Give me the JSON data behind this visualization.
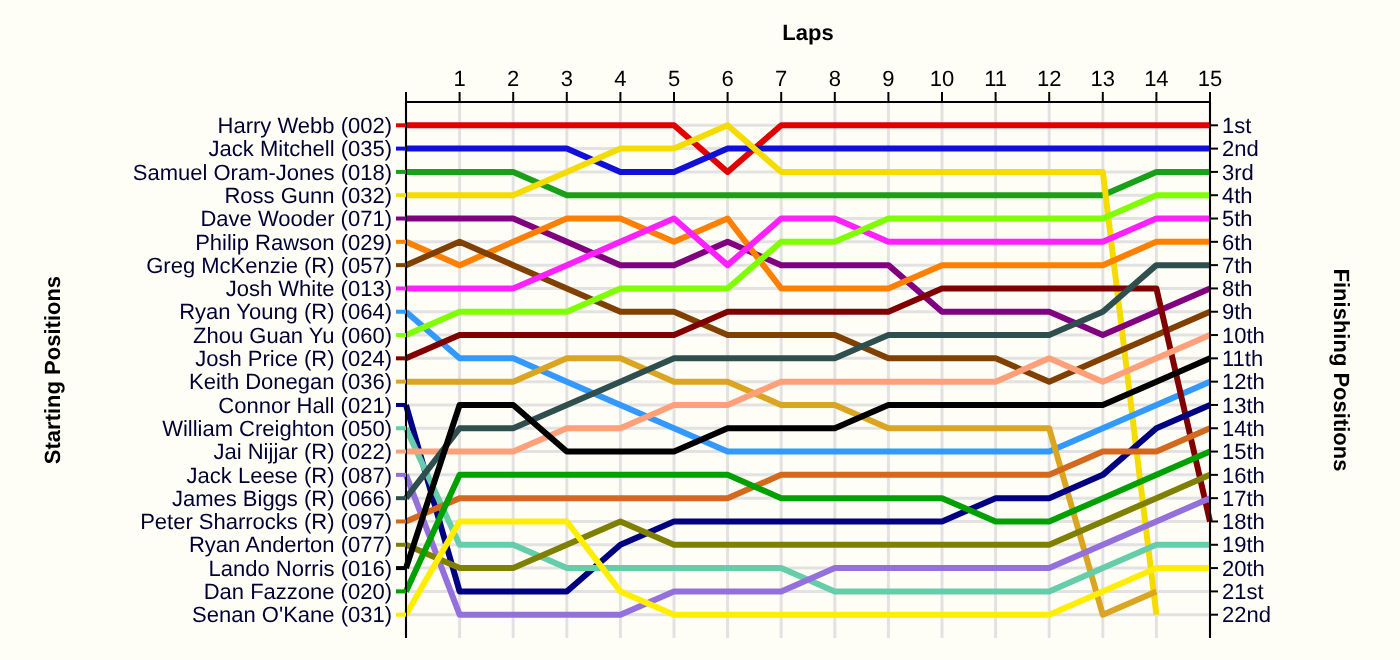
{
  "chart_data": {
    "type": "line",
    "title": "Laps",
    "legend_title": "Starting Positions",
    "ylabel": "Finishing Positions",
    "grid": true,
    "legend": "left",
    "x": [
      0,
      1,
      2,
      3,
      4,
      5,
      6,
      7,
      8,
      9,
      10,
      11,
      12,
      13,
      14,
      15
    ],
    "xlim": [
      0,
      15
    ],
    "xticks": [
      {
        "value": 0,
        "label": null
      },
      1,
      2,
      3,
      4,
      5,
      6,
      7,
      8,
      9,
      10,
      11,
      12,
      13,
      14,
      15
    ],
    "ylim": [
      23,
      0
    ],
    "yticks": [
      {
        "value": 1,
        "label": "1st"
      },
      {
        "value": 2,
        "label": "2nd"
      },
      {
        "value": 3,
        "label": "3rd"
      },
      {
        "value": 4,
        "label": "4th"
      },
      {
        "value": 5,
        "label": "5th"
      },
      {
        "value": 6,
        "label": "6th"
      },
      {
        "value": 7,
        "label": "7th"
      },
      {
        "value": 8,
        "label": "8th"
      },
      {
        "value": 9,
        "label": "9th"
      },
      {
        "value": 10,
        "label": "10th"
      },
      {
        "value": 11,
        "label": "11th"
      },
      {
        "value": 12,
        "label": "12th"
      },
      {
        "value": 13,
        "label": "13th"
      },
      {
        "value": 14,
        "label": "14th"
      },
      {
        "value": 15,
        "label": "15th"
      },
      {
        "value": 16,
        "label": "16th"
      },
      {
        "value": 17,
        "label": "17th"
      },
      {
        "value": 18,
        "label": "18th"
      },
      {
        "value": 19,
        "label": "19th"
      },
      {
        "value": 20,
        "label": "20th"
      },
      {
        "value": 21,
        "label": "21st"
      },
      {
        "value": 22,
        "label": "22nd"
      }
    ],
    "series": [
      {
        "name": "Harry Webb (002)",
        "color": "#e00000",
        "values": [
          1,
          1,
          1,
          1,
          1,
          1,
          3,
          1,
          1,
          1,
          1,
          1,
          1,
          1,
          1,
          1
        ]
      },
      {
        "name": "Jack Mitchell (035)",
        "color": "#1010d8",
        "values": [
          2,
          2,
          2,
          2,
          3,
          3,
          2,
          2,
          2,
          2,
          2,
          2,
          2,
          2,
          2,
          2
        ]
      },
      {
        "name": "Samuel Oram-Jones (018)",
        "color": "#18a018",
        "values": [
          3,
          3,
          3,
          4,
          4,
          4,
          4,
          4,
          4,
          4,
          4,
          4,
          4,
          4,
          3,
          3
        ]
      },
      {
        "name": "Ross Gunn (032)",
        "color": "#f5dc00",
        "values": [
          4,
          4,
          4,
          3,
          2,
          2,
          1,
          3,
          3,
          3,
          3,
          3,
          3,
          3,
          22,
          null
        ]
      },
      {
        "name": "Dave Wooder (071)",
        "color": "#800080",
        "values": [
          5,
          5,
          5,
          6,
          7,
          7,
          6,
          7,
          7,
          7,
          9,
          9,
          9,
          10,
          9,
          8
        ]
      },
      {
        "name": "Philip Rawson (029)",
        "color": "#ff8000",
        "values": [
          6,
          7,
          6,
          5,
          5,
          6,
          5,
          8,
          8,
          8,
          7,
          7,
          7,
          7,
          6,
          6
        ]
      },
      {
        "name": "Greg McKenzie (R) (057)",
        "color": "#804000",
        "values": [
          7,
          6,
          7,
          8,
          9,
          9,
          10,
          10,
          10,
          11,
          11,
          11,
          12,
          11,
          10,
          9
        ]
      },
      {
        "name": "Josh White (013)",
        "color": "#ff20ff",
        "values": [
          8,
          8,
          8,
          7,
          6,
          5,
          7,
          5,
          5,
          6,
          6,
          6,
          6,
          6,
          5,
          5
        ]
      },
      {
        "name": "Ryan Young (R) (064)",
        "color": "#3399ff",
        "values": [
          9,
          11,
          11,
          12,
          13,
          14,
          15,
          15,
          15,
          15,
          15,
          15,
          15,
          14,
          13,
          12
        ]
      },
      {
        "name": "Zhou Guan Yu (060)",
        "color": "#80ff00",
        "values": [
          10,
          9,
          9,
          9,
          8,
          8,
          8,
          6,
          6,
          5,
          5,
          5,
          5,
          5,
          4,
          4
        ]
      },
      {
        "name": "Josh Price (R) (024)",
        "color": "#800000",
        "values": [
          11,
          10,
          10,
          10,
          10,
          10,
          9,
          9,
          9,
          9,
          8,
          8,
          8,
          8,
          8,
          18
        ]
      },
      {
        "name": "Keith Donegan (036)",
        "color": "#daa520",
        "values": [
          12,
          12,
          12,
          11,
          11,
          12,
          12,
          13,
          13,
          14,
          14,
          14,
          14,
          22,
          21,
          null
        ]
      },
      {
        "name": "Connor Hall (021)",
        "color": "#000080",
        "values": [
          13,
          21,
          21,
          21,
          19,
          18,
          18,
          18,
          18,
          18,
          18,
          17,
          17,
          16,
          14,
          13
        ]
      },
      {
        "name": "William Creighton (050)",
        "color": "#66cdaa",
        "values": [
          14,
          19,
          19,
          20,
          20,
          20,
          20,
          20,
          21,
          21,
          21,
          21,
          21,
          20,
          19,
          19
        ]
      },
      {
        "name": "Jai Nijjar (R) (022)",
        "color": "#ffa07a",
        "values": [
          15,
          15,
          15,
          14,
          14,
          13,
          13,
          12,
          12,
          12,
          12,
          12,
          11,
          12,
          11,
          10
        ]
      },
      {
        "name": "Jack Leese (R) (087)",
        "color": "#9370db",
        "values": [
          16,
          22,
          22,
          22,
          22,
          21,
          21,
          21,
          20,
          20,
          20,
          20,
          20,
          19,
          18,
          17
        ]
      },
      {
        "name": "James Biggs (R) (066)",
        "color": "#2f4f4f",
        "values": [
          17,
          14,
          14,
          13,
          12,
          11,
          11,
          11,
          11,
          10,
          10,
          10,
          10,
          9,
          7,
          7
        ]
      },
      {
        "name": "Peter Sharrocks (R) (097)",
        "color": "#d2691e",
        "values": [
          18,
          17,
          17,
          17,
          17,
          17,
          17,
          16,
          16,
          16,
          16,
          16,
          16,
          15,
          15,
          14
        ]
      },
      {
        "name": "Ryan Anderton (077)",
        "color": "#808000",
        "values": [
          19,
          20,
          20,
          19,
          18,
          19,
          19,
          19,
          19,
          19,
          19,
          19,
          19,
          18,
          17,
          16
        ]
      },
      {
        "name": "Lando Norris (016)",
        "color": "#000000",
        "values": [
          20,
          13,
          13,
          15,
          15,
          15,
          14,
          14,
          14,
          13,
          13,
          13,
          13,
          13,
          12,
          11
        ]
      },
      {
        "name": "Dan Fazzone (020)",
        "color": "#00a000",
        "values": [
          21,
          16,
          16,
          16,
          16,
          16,
          16,
          17,
          17,
          17,
          17,
          18,
          18,
          17,
          16,
          15
        ]
      },
      {
        "name": "Senan O'Kane (031)",
        "color": "#ffee00",
        "values": [
          22,
          18,
          18,
          18,
          21,
          22,
          22,
          22,
          22,
          22,
          22,
          22,
          22,
          21,
          20,
          20
        ]
      }
    ]
  }
}
